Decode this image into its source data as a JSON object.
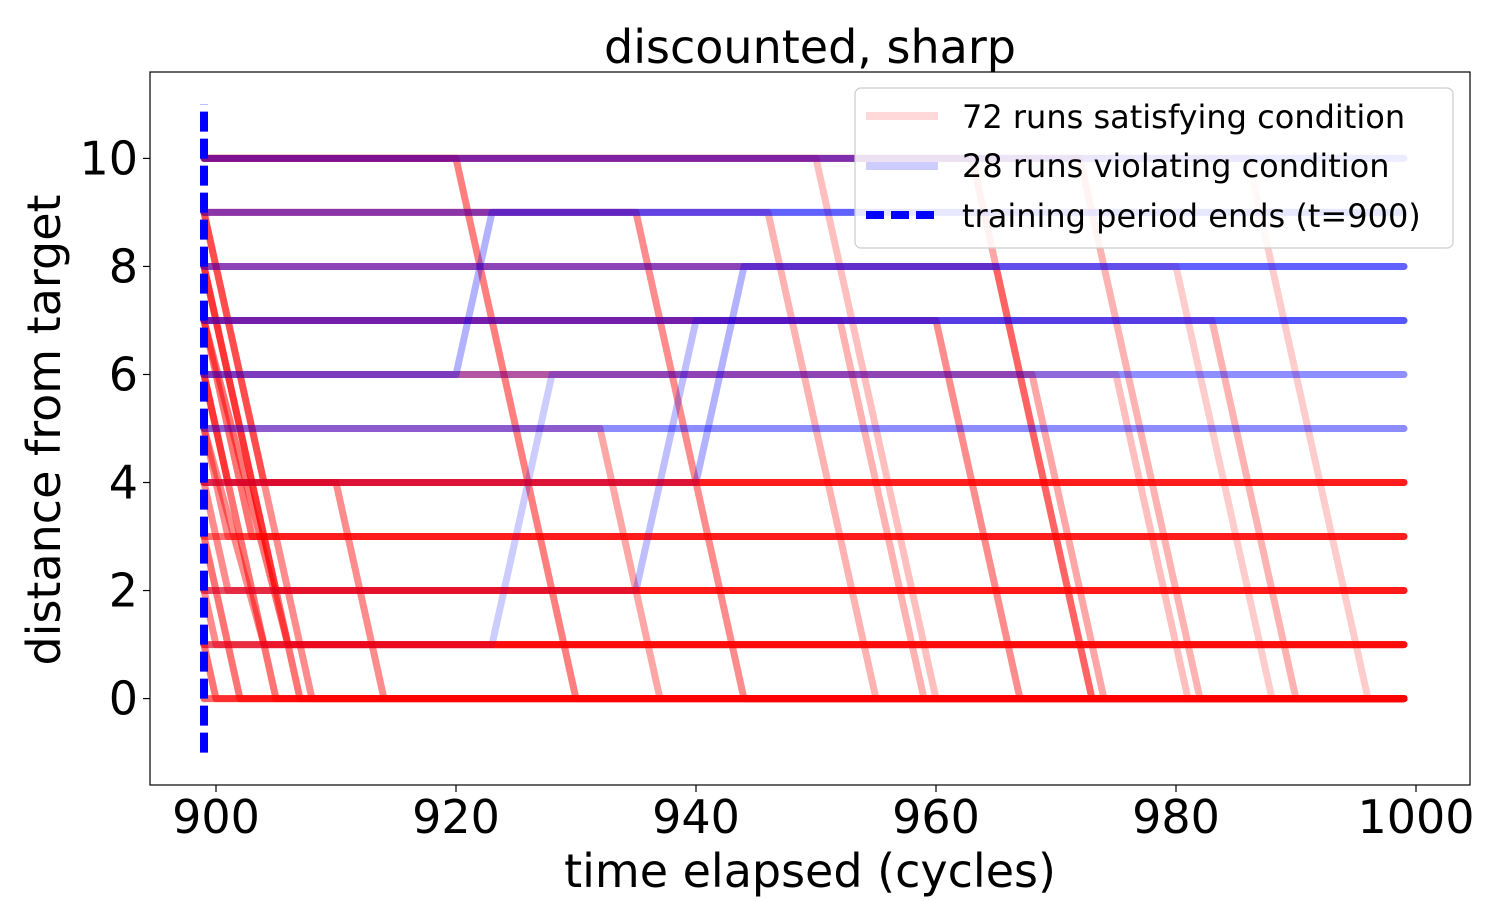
{
  "chart_data": {
    "type": "line",
    "title": "discounted, sharp",
    "xlabel": "time elapsed (cycles)",
    "ylabel": "distance from target",
    "xlim": [
      894.5,
      1004.5
    ],
    "ylim": [
      -1.6,
      11.6
    ],
    "xticks": [
      900,
      920,
      940,
      960,
      980,
      1000
    ],
    "yticks": [
      0,
      2,
      4,
      6,
      8,
      10
    ],
    "grid": false,
    "legend_position": "top-right",
    "colors": {
      "satisfying": "#ff0000",
      "violating": "#0000ff",
      "training_line": "#0000ff"
    },
    "legend": [
      {
        "label": "72 runs satisfying condition",
        "kind": "satisfying"
      },
      {
        "label": "28 runs violating condition",
        "kind": "violating"
      },
      {
        "label": "training period ends (t=900)",
        "kind": "training_line"
      }
    ],
    "training_end": {
      "x": 899,
      "y_range": [
        -1,
        11
      ]
    },
    "series": [
      {
        "group": "satisfying",
        "alpha": 0.55,
        "points": [
          [
            899,
            8
          ],
          [
            907,
            0
          ],
          [
            999,
            0
          ]
        ]
      },
      {
        "group": "satisfying",
        "alpha": 0.55,
        "points": [
          [
            899,
            3
          ],
          [
            902,
            0
          ],
          [
            999,
            0
          ]
        ]
      },
      {
        "group": "satisfying",
        "alpha": 0.55,
        "points": [
          [
            899,
            6
          ],
          [
            905,
            0
          ],
          [
            999,
            0
          ]
        ]
      },
      {
        "group": "satisfying",
        "alpha": 0.45,
        "points": [
          [
            899,
            9
          ],
          [
            908,
            0
          ],
          [
            999,
            0
          ]
        ]
      },
      {
        "group": "satisfying",
        "alpha": 0.55,
        "points": [
          [
            899,
            1
          ],
          [
            900,
            0
          ],
          [
            999,
            0
          ]
        ]
      },
      {
        "group": "satisfying",
        "alpha": 0.45,
        "points": [
          [
            899,
            5
          ],
          [
            904,
            1
          ],
          [
            999,
            1
          ]
        ]
      },
      {
        "group": "satisfying",
        "alpha": 0.55,
        "points": [
          [
            899,
            7
          ],
          [
            906,
            1
          ],
          [
            999,
            1
          ]
        ]
      },
      {
        "group": "satisfying",
        "alpha": 0.45,
        "points": [
          [
            899,
            2
          ],
          [
            900,
            1
          ],
          [
            999,
            1
          ]
        ]
      },
      {
        "group": "satisfying",
        "alpha": 0.45,
        "points": [
          [
            899,
            4
          ],
          [
            901,
            2
          ],
          [
            999,
            2
          ]
        ]
      },
      {
        "group": "satisfying",
        "alpha": 0.55,
        "points": [
          [
            899,
            8
          ],
          [
            905,
            2
          ],
          [
            999,
            2
          ]
        ]
      },
      {
        "group": "satisfying",
        "alpha": 0.45,
        "points": [
          [
            899,
            5
          ],
          [
            901,
            3
          ],
          [
            999,
            3
          ]
        ]
      },
      {
        "group": "satisfying",
        "alpha": 0.55,
        "points": [
          [
            899,
            7
          ],
          [
            903,
            3
          ],
          [
            999,
            3
          ]
        ]
      },
      {
        "group": "satisfying",
        "alpha": 0.55,
        "points": [
          [
            899,
            6
          ],
          [
            901,
            4
          ],
          [
            999,
            4
          ]
        ]
      },
      {
        "group": "satisfying",
        "alpha": 0.45,
        "points": [
          [
            899,
            9
          ],
          [
            904,
            4
          ],
          [
            999,
            4
          ]
        ]
      },
      {
        "group": "satisfying",
        "alpha": 0.5,
        "points": [
          [
            899,
            10
          ],
          [
            920,
            10
          ],
          [
            930,
            0
          ],
          [
            999,
            0
          ]
        ]
      },
      {
        "group": "satisfying",
        "alpha": 0.45,
        "points": [
          [
            899,
            9
          ],
          [
            935,
            9
          ],
          [
            944,
            0
          ],
          [
            999,
            0
          ]
        ]
      },
      {
        "group": "satisfying",
        "alpha": 0.45,
        "points": [
          [
            899,
            7
          ],
          [
            960,
            7
          ],
          [
            967,
            0
          ],
          [
            999,
            0
          ]
        ]
      },
      {
        "group": "satisfying",
        "alpha": 0.4,
        "points": [
          [
            899,
            8
          ],
          [
            965,
            8
          ],
          [
            973,
            0
          ],
          [
            999,
            0
          ]
        ]
      },
      {
        "group": "satisfying",
        "alpha": 0.35,
        "points": [
          [
            899,
            6
          ],
          [
            968,
            6
          ],
          [
            974,
            0
          ],
          [
            999,
            0
          ]
        ]
      },
      {
        "group": "satisfying",
        "alpha": 0.3,
        "points": [
          [
            899,
            10
          ],
          [
            972,
            10
          ],
          [
            982,
            0
          ],
          [
            999,
            0
          ]
        ]
      },
      {
        "group": "satisfying",
        "alpha": 0.2,
        "points": [
          [
            899,
            8
          ],
          [
            980,
            8
          ],
          [
            988,
            0
          ],
          [
            999,
            0
          ]
        ]
      },
      {
        "group": "satisfying",
        "alpha": 0.2,
        "points": [
          [
            899,
            10
          ],
          [
            986,
            10
          ],
          [
            996,
            0
          ],
          [
            999,
            0
          ]
        ]
      },
      {
        "group": "satisfying",
        "alpha": 0.25,
        "points": [
          [
            899,
            6
          ],
          [
            975,
            6
          ],
          [
            981,
            0
          ],
          [
            999,
            0
          ]
        ]
      },
      {
        "group": "satisfying",
        "alpha": 0.3,
        "points": [
          [
            899,
            7
          ],
          [
            952,
            7
          ],
          [
            959,
            0
          ],
          [
            999,
            0
          ]
        ]
      },
      {
        "group": "satisfying",
        "alpha": 0.35,
        "points": [
          [
            899,
            5
          ],
          [
            932,
            5
          ],
          [
            937,
            0
          ],
          [
            999,
            0
          ]
        ]
      },
      {
        "group": "satisfying",
        "alpha": 0.35,
        "points": [
          [
            899,
            10
          ],
          [
            963,
            10
          ],
          [
            973,
            0
          ],
          [
            999,
            0
          ]
        ]
      },
      {
        "group": "satisfying",
        "alpha": 0.3,
        "points": [
          [
            899,
            9
          ],
          [
            946,
            9
          ],
          [
            955,
            0
          ],
          [
            999,
            0
          ]
        ]
      },
      {
        "group": "satisfying",
        "alpha": 0.25,
        "points": [
          [
            899,
            10
          ],
          [
            950,
            10
          ],
          [
            960,
            0
          ],
          [
            999,
            0
          ]
        ]
      },
      {
        "group": "satisfying",
        "alpha": 0.45,
        "points": [
          [
            899,
            4
          ],
          [
            910,
            4
          ],
          [
            914,
            0
          ],
          [
            999,
            0
          ]
        ]
      },
      {
        "group": "satisfying",
        "alpha": 0.3,
        "points": [
          [
            899,
            7
          ],
          [
            983,
            7
          ],
          [
            990,
            0
          ],
          [
            999,
            0
          ]
        ]
      },
      {
        "group": "violating",
        "alpha": 0.5,
        "points": [
          [
            899,
            10
          ],
          [
            999,
            10
          ]
        ]
      },
      {
        "group": "violating",
        "alpha": 0.45,
        "points": [
          [
            899,
            9
          ],
          [
            999,
            9
          ]
        ]
      },
      {
        "group": "violating",
        "alpha": 0.45,
        "points": [
          [
            899,
            8
          ],
          [
            999,
            8
          ]
        ]
      },
      {
        "group": "violating",
        "alpha": 0.55,
        "points": [
          [
            899,
            7
          ],
          [
            999,
            7
          ]
        ]
      },
      {
        "group": "violating",
        "alpha": 0.3,
        "points": [
          [
            899,
            6
          ],
          [
            999,
            6
          ]
        ]
      },
      {
        "group": "violating",
        "alpha": 0.45,
        "points": [
          [
            899,
            5
          ],
          [
            999,
            5
          ]
        ]
      },
      {
        "group": "violating",
        "alpha": 0.3,
        "points": [
          [
            899,
            4
          ],
          [
            940,
            4
          ],
          [
            944,
            8
          ],
          [
            999,
            8
          ]
        ]
      },
      {
        "group": "violating",
        "alpha": 0.25,
        "points": [
          [
            899,
            2
          ],
          [
            935,
            2
          ],
          [
            940,
            7
          ],
          [
            999,
            7
          ]
        ]
      },
      {
        "group": "violating",
        "alpha": 0.2,
        "points": [
          [
            899,
            1
          ],
          [
            923,
            1
          ],
          [
            928,
            6
          ],
          [
            999,
            6
          ]
        ]
      },
      {
        "group": "violating",
        "alpha": 0.3,
        "points": [
          [
            899,
            6
          ],
          [
            920,
            6
          ],
          [
            923,
            9
          ],
          [
            999,
            9
          ]
        ]
      },
      {
        "group": "satisfying",
        "alpha": 0.6,
        "points": [
          [
            899,
            0
          ],
          [
            999,
            0
          ]
        ]
      },
      {
        "group": "satisfying",
        "alpha": 0.6,
        "points": [
          [
            899,
            1
          ],
          [
            999,
            1
          ]
        ]
      },
      {
        "group": "satisfying",
        "alpha": 0.6,
        "points": [
          [
            899,
            2
          ],
          [
            999,
            2
          ]
        ]
      },
      {
        "group": "satisfying",
        "alpha": 0.55,
        "points": [
          [
            899,
            3
          ],
          [
            999,
            3
          ]
        ]
      },
      {
        "group": "satisfying",
        "alpha": 0.55,
        "points": [
          [
            899,
            4
          ],
          [
            999,
            4
          ]
        ]
      }
    ]
  }
}
